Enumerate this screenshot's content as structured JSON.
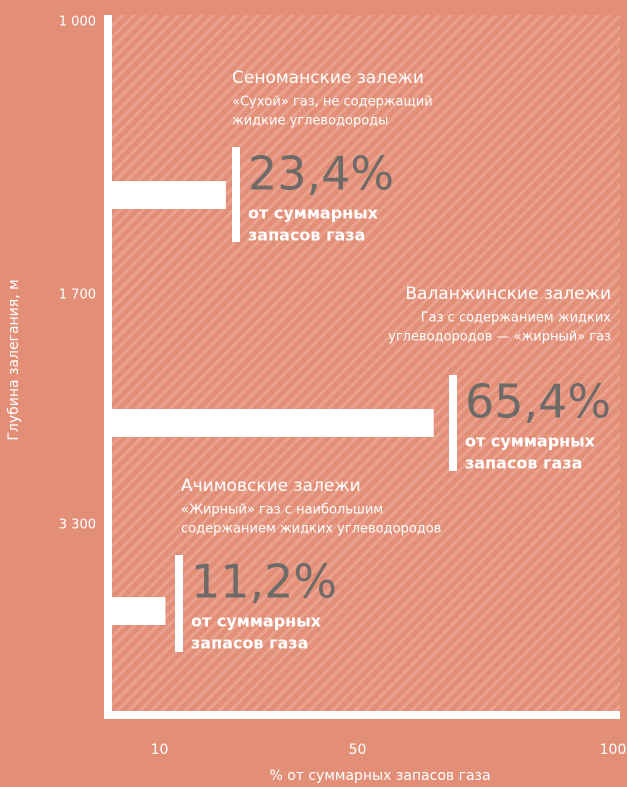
{
  "chart_data": {
    "type": "bar",
    "x_label": "% от суммарных запасов газа",
    "y_label": "Глубина залегания, м",
    "depth_labels": [
      "1 000",
      "1 700",
      "3 300"
    ],
    "categories": [
      "Сеноманские залежи",
      "Валанжинские залежи",
      "Ачимовские залежи"
    ],
    "descriptions": [
      [
        "«Сухой» газ, не содержащий",
        "жидкие углеводороды"
      ],
      [
        "Газ с содержанием жидких",
        "углеводородов — «жирный» газ"
      ],
      [
        "«Жирный» газ с наибольшим",
        "содержанием жидких углеводородов"
      ]
    ],
    "notes": [
      [
        "от суммарных",
        "запасов газа"
      ],
      [
        "от суммарных",
        "запасов газа"
      ],
      [
        "от суммарных",
        "запасов газа"
      ]
    ],
    "values": [
      23.4,
      65.4,
      11.2
    ],
    "value_labels": [
      "23,4%",
      "65,4%",
      "11,2%"
    ],
    "color": "#ffffff",
    "xlim": [
      0,
      100
    ],
    "xticks": [
      10,
      50,
      100
    ]
  }
}
